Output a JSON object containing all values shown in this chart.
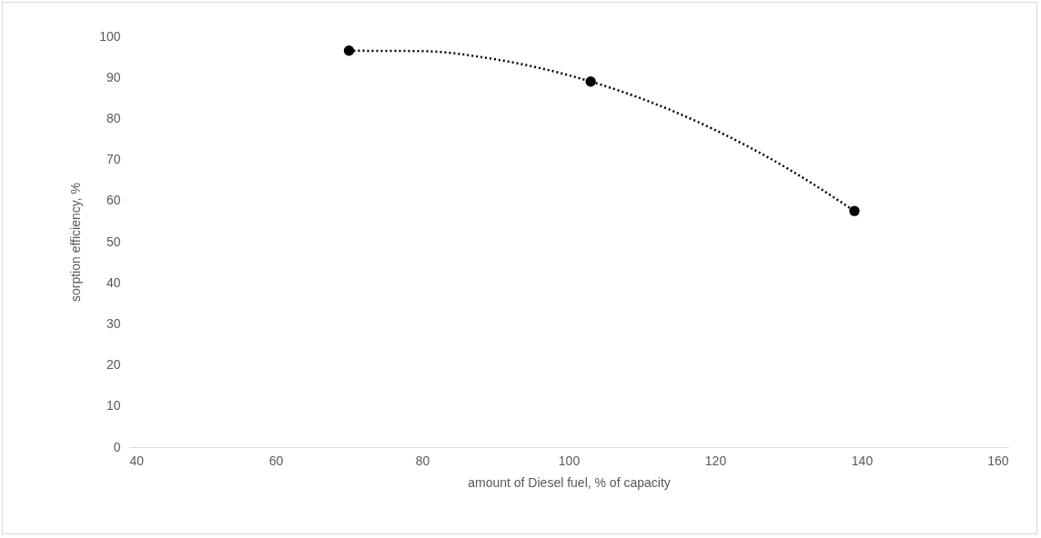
{
  "chart_data": {
    "type": "scatter",
    "xlabel": "amount of Diesel fuel, % of capacity",
    "ylabel": "sorption efficiency, %",
    "xlim": [
      40,
      160
    ],
    "xticks": [
      40,
      60,
      80,
      100,
      120,
      140,
      160
    ],
    "ylim": [
      0,
      100
    ],
    "yticks": [
      0,
      10,
      20,
      30,
      40,
      50,
      60,
      70,
      80,
      90,
      100
    ],
    "grid": false,
    "legend": false,
    "series": [
      {
        "color": "#000000",
        "marker": "circle",
        "x": [
          70,
          103,
          139
        ],
        "values": [
          96.5,
          89,
          57.5
        ]
      },
      {
        "type": "line",
        "color": "#000000",
        "marker": "none",
        "line_style": "dotted",
        "x": [
          70,
          80,
          90,
          103,
          110,
          120,
          130,
          139
        ],
        "values": [
          96.5,
          96.4,
          94.4,
          89,
          84.8,
          77.2,
          67.7,
          57.5
        ]
      }
    ]
  }
}
